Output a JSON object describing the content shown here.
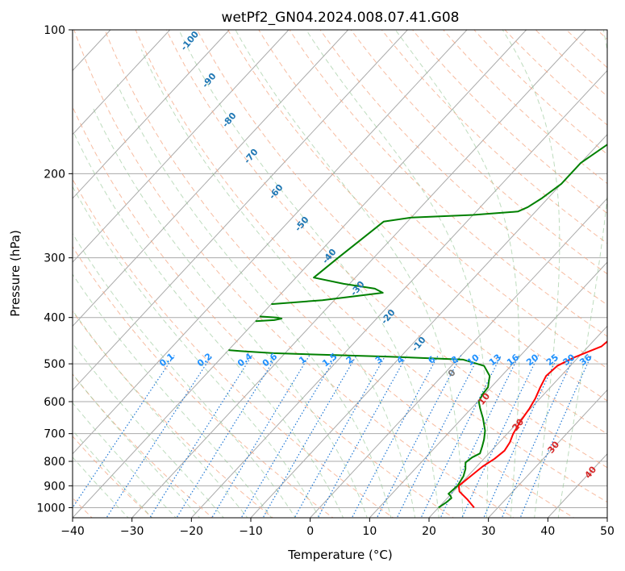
{
  "chart_data": {
    "type": "line",
    "title": "wetPf2_GN04.2024.008.07.41.G08",
    "xlabel": "Temperature (°C)",
    "ylabel": "Pressure (hPa)",
    "xlim": [
      -40,
      50
    ],
    "ylim": [
      1050,
      100
    ],
    "y_scale": "log",
    "x_ticks": [
      -40,
      -30,
      -20,
      -10,
      0,
      10,
      20,
      30,
      40,
      50
    ],
    "y_ticks": [
      1000,
      900,
      800,
      700,
      600,
      500,
      400,
      300,
      200,
      100
    ],
    "grid": true,
    "series": [
      {
        "color": "#ff0000",
        "points": [
          [
            26,
            1000
          ],
          [
            23.5,
            960
          ],
          [
            21,
            925
          ],
          [
            20,
            900
          ],
          [
            20.5,
            860
          ],
          [
            21,
            820
          ],
          [
            21.8,
            790
          ],
          [
            22.2,
            760
          ],
          [
            21.8,
            730
          ],
          [
            21,
            700
          ],
          [
            20.3,
            660
          ],
          [
            19.8,
            620
          ],
          [
            19.2,
            590
          ],
          [
            18.3,
            560
          ],
          [
            17.5,
            530
          ],
          [
            17.8,
            505
          ],
          [
            19.3,
            485
          ],
          [
            21,
            470
          ],
          [
            22.2,
            460
          ],
          [
            22.5,
            445
          ],
          [
            21.8,
            420
          ],
          [
            20.3,
            390
          ],
          [
            18.2,
            370
          ],
          [
            15.8,
            345
          ],
          [
            13.5,
            320
          ],
          [
            11,
            297
          ],
          [
            8.6,
            275
          ],
          [
            6.7,
            255
          ],
          [
            5.2,
            238
          ],
          [
            4,
            225
          ],
          [
            3.1,
            210
          ],
          [
            2.1,
            190
          ],
          [
            1.4,
            170
          ],
          [
            1.1,
            155
          ],
          [
            1.5,
            140
          ],
          [
            2.2,
            125
          ],
          [
            2.7,
            115
          ],
          [
            2.6,
            108
          ],
          [
            2.2,
            100
          ]
        ]
      },
      {
        "color": "#008000",
        "points": [
          [
            20,
            1000
          ],
          [
            20.5,
            975
          ],
          [
            20.7,
            955
          ],
          [
            20.2,
            945
          ],
          [
            19.5,
            935
          ],
          [
            19.8,
            900
          ],
          [
            19.3,
            860
          ],
          [
            18.5,
            830
          ],
          [
            17.5,
            805
          ],
          [
            17.8,
            785
          ],
          [
            18.5,
            770
          ],
          [
            17.8,
            745
          ],
          [
            17,
            720
          ],
          [
            15.8,
            690
          ],
          [
            13.5,
            650
          ],
          [
            11.5,
            620
          ],
          [
            10.2,
            600
          ],
          [
            9.7,
            580
          ],
          [
            9.5,
            560
          ],
          [
            8,
            530
          ],
          [
            5.5,
            505
          ],
          [
            1,
            490
          ],
          [
            -12,
            483
          ],
          [
            -25,
            478
          ],
          [
            -32,
            475
          ],
          [
            -38,
            470
          ],
          [
            -40,
            468
          ]
        ]
      },
      {
        "color": "#008000",
        "points": [
          [
            -40,
            407
          ],
          [
            -37,
            405
          ],
          [
            -36,
            402
          ],
          [
            -37,
            400
          ],
          [
            -40,
            398
          ]
        ]
      },
      {
        "color": "#008000",
        "points": [
          [
            -40,
            375
          ],
          [
            -32,
            368
          ],
          [
            -23,
            355
          ],
          [
            -25,
            348
          ],
          [
            -31,
            340
          ],
          [
            -37,
            330
          ],
          [
            -36,
            300
          ],
          [
            -35,
            275
          ],
          [
            -34,
            252
          ],
          [
            -30,
            247
          ],
          [
            -20,
            244
          ],
          [
            -13,
            240
          ],
          [
            -12,
            235
          ],
          [
            -11,
            225
          ],
          [
            -10,
            210
          ],
          [
            -10,
            200
          ],
          [
            -10,
            190
          ],
          [
            -8,
            170
          ],
          [
            -6,
            150
          ],
          [
            -4,
            135
          ],
          [
            -3.5,
            125
          ],
          [
            -2,
            115
          ],
          [
            -0.5,
            108
          ],
          [
            1.5,
            102
          ],
          [
            2.5,
            100
          ]
        ]
      }
    ],
    "dry_adiabat_labels": [
      "-100",
      "-90",
      "-80",
      "-70",
      "-60",
      "-50",
      "-40",
      "-30",
      "-20",
      "-10",
      "0",
      "10",
      "20",
      "30",
      "40"
    ],
    "mixing_ratio_labels": [
      "0.1",
      "0.2",
      "0.4",
      "0.6",
      "1",
      "1.5",
      "2",
      "3",
      "4",
      "6",
      "8",
      "10",
      "13",
      "16",
      "20",
      "25",
      "30",
      "36"
    ]
  }
}
